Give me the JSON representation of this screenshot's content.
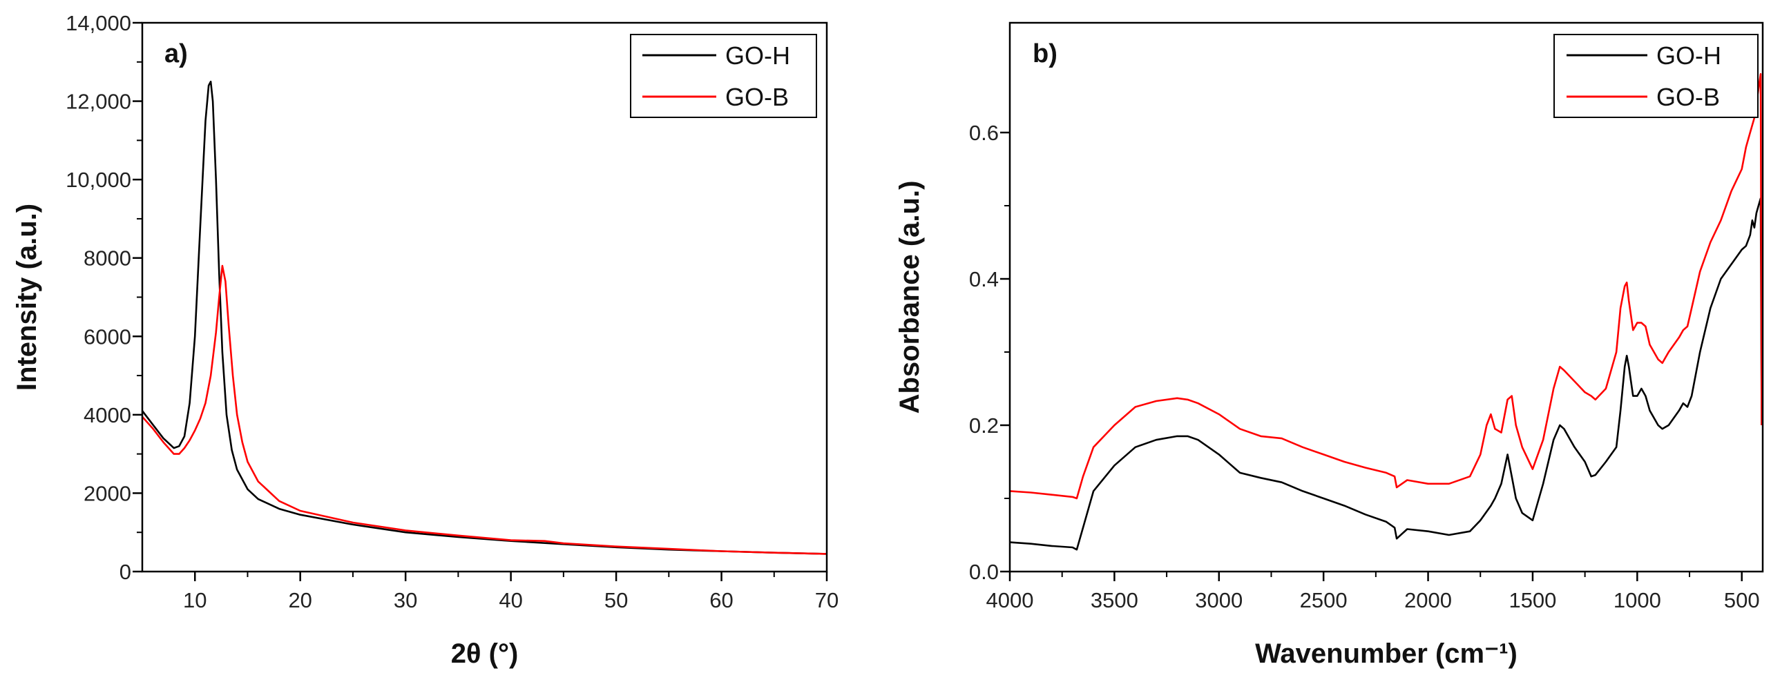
{
  "chart_data": [
    {
      "type": "line",
      "panel_label": "a)",
      "title": "",
      "xlabel": "2θ (°)",
      "ylabel": "Intensity (a.u.)",
      "xlim": [
        5,
        70
      ],
      "ylim": [
        0,
        14000
      ],
      "xticks": [
        10,
        20,
        30,
        40,
        50,
        60,
        70
      ],
      "xtick_labels": [
        "10",
        "20",
        "30",
        "40",
        "50",
        "60",
        "70"
      ],
      "yticks": [
        0,
        2000,
        4000,
        6000,
        8000,
        10000,
        12000,
        14000
      ],
      "ytick_labels": [
        "0",
        "2000",
        "4000",
        "6000",
        "8000",
        "10,000",
        "12,000",
        "14,000"
      ],
      "legend_position": "top-right",
      "series": [
        {
          "name": "GO-H",
          "color": "#000000",
          "x": [
            5,
            6,
            7,
            8,
            8.5,
            9,
            9.5,
            10,
            10.5,
            11,
            11.3,
            11.5,
            11.7,
            12,
            12.3,
            12.6,
            13,
            13.5,
            14,
            15,
            16,
            18,
            20,
            25,
            30,
            35,
            40,
            45,
            50,
            55,
            60,
            65,
            70
          ],
          "y": [
            4100,
            3750,
            3400,
            3150,
            3200,
            3450,
            4300,
            6000,
            8800,
            11500,
            12400,
            12500,
            12000,
            10000,
            7600,
            5600,
            4000,
            3100,
            2600,
            2100,
            1850,
            1600,
            1450,
            1200,
            1000,
            880,
            780,
            700,
            620,
            560,
            520,
            480,
            450
          ]
        },
        {
          "name": "GO-B",
          "color": "#ff0000",
          "x": [
            5,
            6,
            7,
            8,
            8.5,
            9,
            9.5,
            10,
            10.5,
            11,
            11.5,
            12,
            12.3,
            12.6,
            12.9,
            13.2,
            13.6,
            14,
            14.5,
            15,
            16,
            18,
            20,
            25,
            30,
            35,
            40,
            43.2,
            45,
            50,
            55,
            60,
            65,
            70
          ],
          "y": [
            3950,
            3650,
            3300,
            3000,
            3000,
            3150,
            3350,
            3600,
            3900,
            4300,
            5000,
            6100,
            7000,
            7800,
            7400,
            6300,
            5000,
            4000,
            3300,
            2800,
            2300,
            1800,
            1550,
            1250,
            1050,
            920,
            800,
            780,
            720,
            640,
            580,
            520,
            480,
            450
          ]
        }
      ]
    },
    {
      "type": "line",
      "panel_label": "b)",
      "title": "",
      "xlabel": "Wavenumber (cm⁻¹)",
      "ylabel": "Absorbance (a.u.)",
      "xlim": [
        4000,
        400
      ],
      "ylim": [
        0,
        0.75
      ],
      "xticks": [
        4000,
        3500,
        3000,
        2500,
        2000,
        1500,
        1000,
        500
      ],
      "xtick_labels": [
        "4000",
        "3500",
        "3000",
        "2500",
        "2000",
        "1500",
        "1000",
        "500"
      ],
      "yticks": [
        0,
        0.2,
        0.4,
        0.6
      ],
      "ytick_labels": [
        "0.0",
        "0.2",
        "0.4",
        "0.6"
      ],
      "legend_position": "top-right",
      "series": [
        {
          "name": "GO-H",
          "color": "#000000",
          "x": [
            4000,
            3900,
            3800,
            3700,
            3680,
            3650,
            3600,
            3500,
            3400,
            3300,
            3200,
            3150,
            3100,
            3000,
            2900,
            2800,
            2700,
            2600,
            2500,
            2400,
            2300,
            2200,
            2160,
            2150,
            2100,
            2000,
            1900,
            1800,
            1750,
            1700,
            1680,
            1650,
            1620,
            1600,
            1580,
            1550,
            1500,
            1450,
            1400,
            1370,
            1350,
            1300,
            1250,
            1220,
            1200,
            1150,
            1100,
            1080,
            1060,
            1050,
            1040,
            1020,
            1000,
            980,
            960,
            940,
            900,
            880,
            850,
            800,
            780,
            760,
            740,
            700,
            650,
            600,
            550,
            500,
            480,
            460,
            450,
            440,
            430,
            420,
            410,
            405
          ],
          "y": [
            0.04,
            0.038,
            0.035,
            0.033,
            0.03,
            0.06,
            0.11,
            0.145,
            0.17,
            0.18,
            0.185,
            0.185,
            0.18,
            0.16,
            0.135,
            0.128,
            0.122,
            0.11,
            0.1,
            0.09,
            0.078,
            0.068,
            0.06,
            0.045,
            0.058,
            0.055,
            0.05,
            0.055,
            0.07,
            0.09,
            0.1,
            0.12,
            0.16,
            0.13,
            0.1,
            0.08,
            0.07,
            0.12,
            0.18,
            0.2,
            0.195,
            0.17,
            0.15,
            0.13,
            0.132,
            0.15,
            0.17,
            0.22,
            0.28,
            0.295,
            0.28,
            0.24,
            0.24,
            0.25,
            0.24,
            0.22,
            0.2,
            0.195,
            0.2,
            0.22,
            0.23,
            0.225,
            0.24,
            0.3,
            0.36,
            0.4,
            0.42,
            0.44,
            0.445,
            0.46,
            0.48,
            0.47,
            0.49,
            0.5,
            0.51,
            0.2
          ]
        },
        {
          "name": "GO-B",
          "color": "#ff0000",
          "x": [
            4000,
            3900,
            3800,
            3700,
            3680,
            3650,
            3600,
            3500,
            3400,
            3300,
            3200,
            3150,
            3100,
            3000,
            2900,
            2800,
            2700,
            2600,
            2500,
            2400,
            2300,
            2200,
            2160,
            2150,
            2100,
            2000,
            1900,
            1800,
            1750,
            1720,
            1700,
            1680,
            1650,
            1620,
            1600,
            1580,
            1550,
            1500,
            1450,
            1400,
            1370,
            1350,
            1300,
            1250,
            1220,
            1200,
            1150,
            1100,
            1080,
            1060,
            1050,
            1040,
            1020,
            1000,
            980,
            960,
            940,
            900,
            880,
            850,
            800,
            780,
            760,
            740,
            700,
            650,
            600,
            550,
            500,
            480,
            460,
            440,
            430,
            420,
            410,
            405
          ],
          "y": [
            0.11,
            0.108,
            0.105,
            0.102,
            0.1,
            0.13,
            0.17,
            0.2,
            0.225,
            0.233,
            0.237,
            0.235,
            0.23,
            0.215,
            0.195,
            0.185,
            0.182,
            0.17,
            0.16,
            0.15,
            0.142,
            0.135,
            0.13,
            0.115,
            0.125,
            0.12,
            0.12,
            0.13,
            0.16,
            0.2,
            0.215,
            0.195,
            0.19,
            0.235,
            0.24,
            0.2,
            0.17,
            0.14,
            0.18,
            0.25,
            0.28,
            0.275,
            0.26,
            0.245,
            0.24,
            0.235,
            0.25,
            0.3,
            0.36,
            0.39,
            0.395,
            0.37,
            0.33,
            0.34,
            0.34,
            0.335,
            0.31,
            0.29,
            0.285,
            0.3,
            0.32,
            0.33,
            0.335,
            0.36,
            0.41,
            0.45,
            0.48,
            0.52,
            0.55,
            0.58,
            0.6,
            0.62,
            0.64,
            0.66,
            0.68,
            0.2
          ]
        }
      ]
    }
  ]
}
